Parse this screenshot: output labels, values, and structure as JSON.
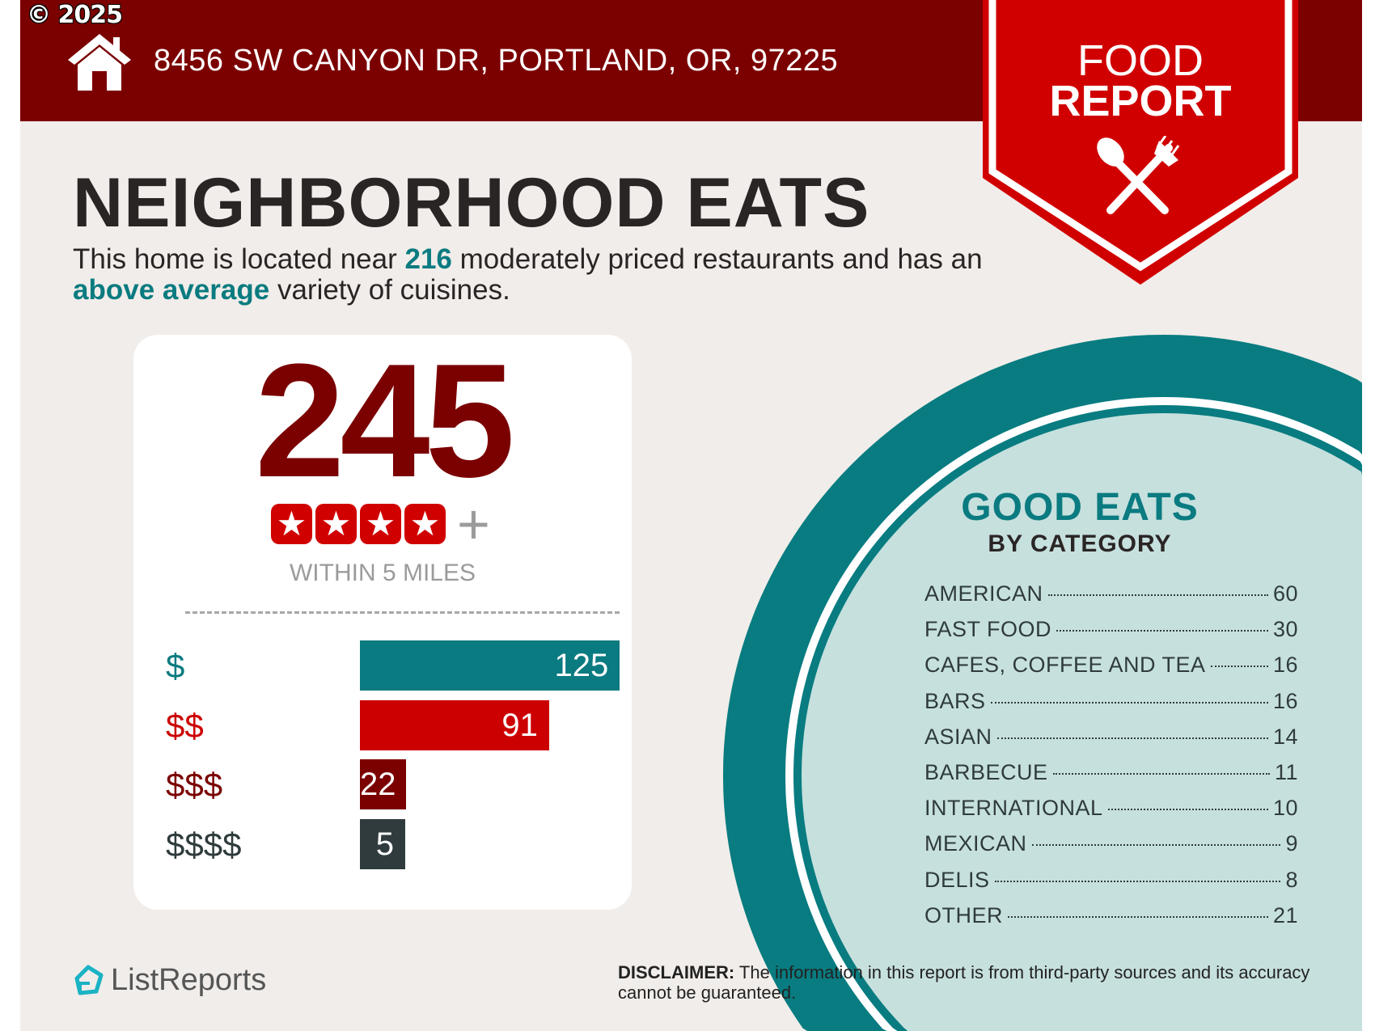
{
  "header": {
    "copyright": "© 2025",
    "address": "8456 SW CANYON DR, PORTLAND, OR, 97225",
    "house_icon": "house-icon"
  },
  "ribbon": {
    "line1": "FOOD",
    "line2": "REPORT",
    "icon": "spoon-fork-icon"
  },
  "title": "NEIGHBORHOOD EATS",
  "subtitle": {
    "part1": "This home is located near ",
    "count": "216",
    "part2": " moderately priced restaurants and has an ",
    "variety": "above average",
    "part3": " variety of cuisines."
  },
  "summary": {
    "total": "245",
    "stars": 4,
    "plus": "+",
    "within": "WITHIN 5 MILES"
  },
  "chart_data": {
    "type": "bar",
    "categories": [
      "$",
      "$$",
      "$$$",
      "$$$$"
    ],
    "values": [
      125,
      91,
      22,
      5
    ],
    "colors": [
      "#0a7b80",
      "#cc0000",
      "#7b0000",
      "#2f3b3d"
    ]
  },
  "good_eats": {
    "title": "GOOD EATS",
    "subtitle": "BY CATEGORY",
    "items": [
      {
        "label": "AMERICAN",
        "count": "60"
      },
      {
        "label": "FAST FOOD",
        "count": "30"
      },
      {
        "label": "CAFES, COFFEE AND TEA",
        "count": "16"
      },
      {
        "label": "BARS",
        "count": "16"
      },
      {
        "label": "ASIAN",
        "count": "14"
      },
      {
        "label": "BARBECUE",
        "count": "11"
      },
      {
        "label": "INTERNATIONAL",
        "count": "10"
      },
      {
        "label": "MEXICAN",
        "count": "9"
      },
      {
        "label": "DELIS",
        "count": "8"
      },
      {
        "label": "OTHER",
        "count": "21"
      }
    ]
  },
  "footer": {
    "logo": "ListReports",
    "disclaimer_label": "DISCLAIMER:",
    "disclaimer_text": " The information in this report is from third-party sources and its accuracy cannot be guaranteed."
  },
  "colors": {
    "maroon": "#7b0000",
    "red": "#d10000",
    "teal": "#0a7b80",
    "light_teal": "#c6e0de",
    "background": "#f1edea"
  }
}
